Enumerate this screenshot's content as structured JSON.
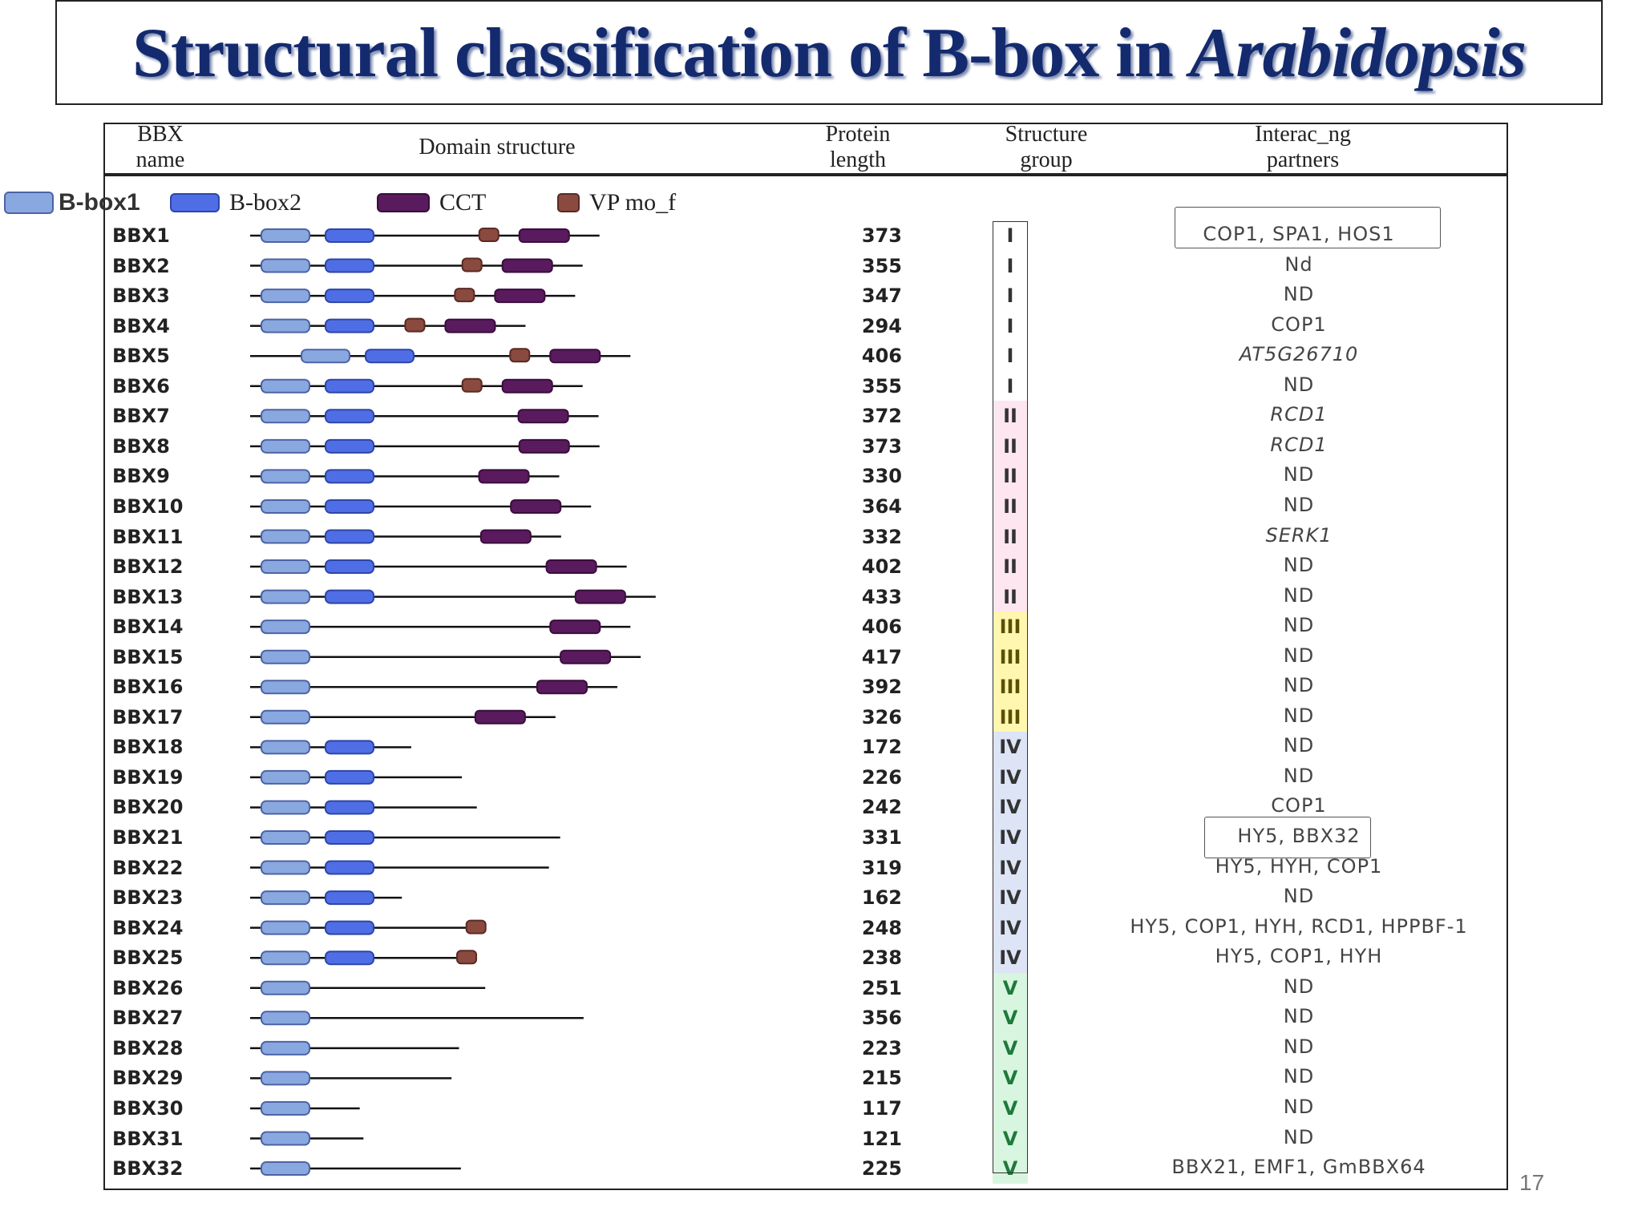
{
  "title": {
    "main": "Structural classification of B-box in ",
    "species": "Arabidopsis"
  },
  "headers": {
    "name": "BBX\nname",
    "domain": "Domain structure",
    "length": "Protein\nlength",
    "group": "Structure\ngroup",
    "partners": "Interac_ng\npartners"
  },
  "legend": {
    "bbox1": "B-box1",
    "bbox2": "B-box2",
    "cct": "CCT",
    "vp": "VP mo_f"
  },
  "colors": {
    "bbox1": "#8aa8e0",
    "bbox2": "#4f6ee6",
    "cct": "#5a1a5e",
    "vp": "#8a4a40",
    "group_I": "#ffffff",
    "group_II": "#fde6ef",
    "group_III": "#fff7b0",
    "group_IV": "#dde4f6",
    "group_V": "#d8f5e0"
  },
  "rows": [
    {
      "name": "BBX1",
      "length": "373",
      "group": "I",
      "partners": "COP1, SPA1, HOS1",
      "italic": false,
      "domains": {
        "b1": true,
        "b2": true,
        "vp": true,
        "cct": true
      }
    },
    {
      "name": "BBX2",
      "length": "355",
      "group": "I",
      "partners": "Nd",
      "italic": false,
      "domains": {
        "b1": true,
        "b2": true,
        "vp": true,
        "cct": true
      }
    },
    {
      "name": "BBX3",
      "length": "347",
      "group": "I",
      "partners": "ND",
      "italic": false,
      "domains": {
        "b1": true,
        "b2": true,
        "vp": true,
        "cct": true
      }
    },
    {
      "name": "BBX4",
      "length": "294",
      "group": "I",
      "partners": "COP1",
      "italic": false,
      "domains": {
        "b1": true,
        "b2": true,
        "vp": true,
        "cct": true
      }
    },
    {
      "name": "BBX5",
      "length": "406",
      "group": "I",
      "partners": "AT5G26710",
      "italic": true,
      "domains": {
        "b1": true,
        "b2": true,
        "vp": true,
        "cct": true
      }
    },
    {
      "name": "BBX6",
      "length": "355",
      "group": "I",
      "partners": "ND",
      "italic": false,
      "domains": {
        "b1": true,
        "b2": true,
        "vp": true,
        "cct": true
      }
    },
    {
      "name": "BBX7",
      "length": "372",
      "group": "II",
      "partners": "RCD1",
      "italic": true,
      "domains": {
        "b1": true,
        "b2": true,
        "vp": false,
        "cct": true
      }
    },
    {
      "name": "BBX8",
      "length": "373",
      "group": "II",
      "partners": "RCD1",
      "italic": true,
      "domains": {
        "b1": true,
        "b2": true,
        "vp": false,
        "cct": true
      }
    },
    {
      "name": "BBX9",
      "length": "330",
      "group": "II",
      "partners": "ND",
      "italic": false,
      "domains": {
        "b1": true,
        "b2": true,
        "vp": false,
        "cct": true
      }
    },
    {
      "name": "BBX10",
      "length": "364",
      "group": "II",
      "partners": "ND",
      "italic": false,
      "domains": {
        "b1": true,
        "b2": true,
        "vp": false,
        "cct": true
      }
    },
    {
      "name": "BBX11",
      "length": "332",
      "group": "II",
      "partners": "SERK1",
      "italic": true,
      "domains": {
        "b1": true,
        "b2": true,
        "vp": false,
        "cct": true
      }
    },
    {
      "name": "BBX12",
      "length": "402",
      "group": "II",
      "partners": "ND",
      "italic": false,
      "domains": {
        "b1": true,
        "b2": true,
        "vp": false,
        "cct": true
      }
    },
    {
      "name": "BBX13",
      "length": "433",
      "group": "II",
      "partners": "ND",
      "italic": false,
      "domains": {
        "b1": true,
        "b2": true,
        "vp": false,
        "cct": true
      }
    },
    {
      "name": "BBX14",
      "length": "406",
      "group": "III",
      "partners": "ND",
      "italic": false,
      "domains": {
        "b1": true,
        "b2": false,
        "vp": false,
        "cct": true
      }
    },
    {
      "name": "BBX15",
      "length": "417",
      "group": "III",
      "partners": "ND",
      "italic": false,
      "domains": {
        "b1": true,
        "b2": false,
        "vp": false,
        "cct": true
      }
    },
    {
      "name": "BBX16",
      "length": "392",
      "group": "III",
      "partners": "ND",
      "italic": false,
      "domains": {
        "b1": true,
        "b2": false,
        "vp": false,
        "cct": true
      }
    },
    {
      "name": "BBX17",
      "length": "326",
      "group": "III",
      "partners": "ND",
      "italic": false,
      "domains": {
        "b1": true,
        "b2": false,
        "vp": false,
        "cct": true
      }
    },
    {
      "name": "BBX18",
      "length": "172",
      "group": "IV",
      "partners": "ND",
      "italic": false,
      "domains": {
        "b1": true,
        "b2": true,
        "vp": false,
        "cct": false
      }
    },
    {
      "name": "BBX19",
      "length": "226",
      "group": "IV",
      "partners": "ND",
      "italic": false,
      "domains": {
        "b1": true,
        "b2": true,
        "vp": false,
        "cct": false
      }
    },
    {
      "name": "BBX20",
      "length": "242",
      "group": "IV",
      "partners": "COP1",
      "italic": false,
      "domains": {
        "b1": true,
        "b2": true,
        "vp": false,
        "cct": false
      }
    },
    {
      "name": "BBX21",
      "length": "331",
      "group": "IV",
      "partners": "HY5, BBX32",
      "italic": false,
      "domains": {
        "b1": true,
        "b2": true,
        "vp": false,
        "cct": false
      }
    },
    {
      "name": "BBX22",
      "length": "319",
      "group": "IV",
      "partners": "HY5, HYH, COP1",
      "italic": false,
      "domains": {
        "b1": true,
        "b2": true,
        "vp": false,
        "cct": false
      }
    },
    {
      "name": "BBX23",
      "length": "162",
      "group": "IV",
      "partners": "ND",
      "italic": false,
      "domains": {
        "b1": true,
        "b2": true,
        "vp": false,
        "cct": false
      }
    },
    {
      "name": "BBX24",
      "length": "248",
      "group": "IV",
      "partners": "HY5, COP1, HYH, RCD1, HPPBF-1",
      "italic": false,
      "domains": {
        "b1": true,
        "b2": true,
        "vp": true,
        "cct": false
      }
    },
    {
      "name": "BBX25",
      "length": "238",
      "group": "IV",
      "partners": "HY5, COP1, HYH",
      "italic": false,
      "domains": {
        "b1": true,
        "b2": true,
        "vp": true,
        "cct": false
      }
    },
    {
      "name": "BBX26",
      "length": "251",
      "group": "V",
      "partners": "ND",
      "italic": false,
      "domains": {
        "b1": true,
        "b2": false,
        "vp": false,
        "cct": false
      }
    },
    {
      "name": "BBX27",
      "length": "356",
      "group": "V",
      "partners": "ND",
      "italic": false,
      "domains": {
        "b1": true,
        "b2": false,
        "vp": false,
        "cct": false
      }
    },
    {
      "name": "BBX28",
      "length": "223",
      "group": "V",
      "partners": "ND",
      "italic": false,
      "domains": {
        "b1": true,
        "b2": false,
        "vp": false,
        "cct": false
      }
    },
    {
      "name": "BBX29",
      "length": "215",
      "group": "V",
      "partners": "ND",
      "italic": false,
      "domains": {
        "b1": true,
        "b2": false,
        "vp": false,
        "cct": false
      }
    },
    {
      "name": "BBX30",
      "length": "117",
      "group": "V",
      "partners": "ND",
      "italic": false,
      "domains": {
        "b1": true,
        "b2": false,
        "vp": false,
        "cct": false
      }
    },
    {
      "name": "BBX31",
      "length": "121",
      "group": "V",
      "partners": "ND",
      "italic": false,
      "domains": {
        "b1": true,
        "b2": false,
        "vp": false,
        "cct": false
      }
    },
    {
      "name": "BBX32",
      "length": "225",
      "group": "V",
      "partners": "BBX21, EMF1, GmBBX64",
      "italic": false,
      "domains": {
        "b1": true,
        "b2": false,
        "vp": false,
        "cct": false
      }
    }
  ],
  "page_number": "17"
}
